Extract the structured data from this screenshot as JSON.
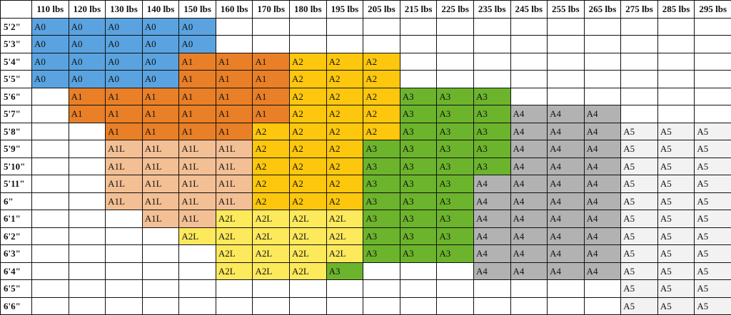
{
  "table": {
    "columns": [
      "110 lbs",
      "120 lbs",
      "130 lbs",
      "140 lbs",
      "150 lbs",
      "160 lbs",
      "170 lbs",
      "180 lbs",
      "195 lbs",
      "205 lbs",
      "215 lbs",
      "225 lbs",
      "235 lbs",
      "245 lbs",
      "255 lbs",
      "265 lbs",
      "275 lbs",
      "285 lbs",
      "295 lbs"
    ],
    "colors": {
      "A0": "#5aa3e0",
      "A1": "#e97f26",
      "A1L": "#f3bf94",
      "A2": "#fcc70c",
      "A2L": "#fde95c",
      "A3": "#6cb42c",
      "A4": "#b2b2b2",
      "A5": "#f2f2f2"
    },
    "rows": [
      {
        "label": "5'2\"",
        "cells": [
          "A0",
          "A0",
          "A0",
          "A0",
          "A0",
          null,
          null,
          null,
          null,
          null,
          null,
          null,
          null,
          null,
          null,
          null,
          null,
          null,
          null
        ]
      },
      {
        "label": "5'3\"",
        "cells": [
          "A0",
          "A0",
          "A0",
          "A0",
          "A0",
          null,
          null,
          null,
          null,
          null,
          null,
          null,
          null,
          null,
          null,
          null,
          null,
          null,
          null
        ]
      },
      {
        "label": "5'4\"",
        "cells": [
          "A0",
          "A0",
          "A0",
          "A0",
          "A1",
          "A1",
          "A1",
          "A2",
          "A2",
          "A2",
          null,
          null,
          null,
          null,
          null,
          null,
          null,
          null,
          null
        ]
      },
      {
        "label": "5'5\"",
        "cells": [
          "A0",
          "A0",
          "A0",
          "A0",
          "A1",
          "A1",
          "A1",
          "A2",
          "A2",
          "A2",
          null,
          null,
          null,
          null,
          null,
          null,
          null,
          null,
          null
        ]
      },
      {
        "label": "5'6\"",
        "cells": [
          null,
          "A1",
          "A1",
          "A1",
          "A1",
          "A1",
          "A1",
          "A2",
          "A2",
          "A2",
          "A3",
          "A3",
          "A3",
          null,
          null,
          null,
          null,
          null,
          null
        ]
      },
      {
        "label": "5'7\"",
        "cells": [
          null,
          "A1",
          "A1",
          "A1",
          "A1",
          "A1",
          "A1",
          "A2",
          "A2",
          "A2",
          "A3",
          "A3",
          "A3",
          "A4",
          "A4",
          "A4",
          null,
          null,
          null
        ]
      },
      {
        "label": "5'8\"",
        "cells": [
          null,
          null,
          "A1",
          "A1",
          "A1",
          "A1",
          "A2",
          "A2",
          "A2",
          "A2",
          "A3",
          "A3",
          "A3",
          "A4",
          "A4",
          "A4",
          "A5",
          "A5",
          "A5"
        ]
      },
      {
        "label": "5'9\"",
        "cells": [
          null,
          null,
          "A1L",
          "A1L",
          "A1L",
          "A1L",
          "A2",
          "A2",
          "A2",
          "A3",
          "A3",
          "A3",
          "A3",
          "A4",
          "A4",
          "A4",
          "A5",
          "A5",
          "A5"
        ]
      },
      {
        "label": "5'10\"",
        "cells": [
          null,
          null,
          "A1L",
          "A1L",
          "A1L",
          "A1L",
          "A2",
          "A2",
          "A2",
          "A3",
          "A3",
          "A3",
          "A3",
          "A4",
          "A4",
          "A4",
          "A5",
          "A5",
          "A5"
        ]
      },
      {
        "label": "5'11\"",
        "cells": [
          null,
          null,
          "A1L",
          "A1L",
          "A1L",
          "A1L",
          "A2",
          "A2",
          "A2",
          "A3",
          "A3",
          "A3",
          "A4",
          "A4",
          "A4",
          "A4",
          "A5",
          "A5",
          "A5"
        ]
      },
      {
        "label": "6\"",
        "cells": [
          null,
          null,
          "A1L",
          "A1L",
          "A1L",
          "A1L",
          "A2",
          "A2",
          "A2",
          "A3",
          "A3",
          "A3",
          "A4",
          "A4",
          "A4",
          "A4",
          "A5",
          "A5",
          "A5"
        ]
      },
      {
        "label": "6'1\"",
        "cells": [
          null,
          null,
          null,
          "A1L",
          "A1L",
          "A2L",
          "A2L",
          "A2L",
          "A2L",
          "A3",
          "A3",
          "A3",
          "A4",
          "A4",
          "A4",
          "A4",
          "A5",
          "A5",
          "A5"
        ]
      },
      {
        "label": "6'2\"",
        "cells": [
          null,
          null,
          null,
          null,
          "A2L",
          "A2L",
          "A2L",
          "A2L",
          "A2L",
          "A3",
          "A3",
          "A3",
          "A4",
          "A4",
          "A4",
          "A4",
          "A5",
          "A5",
          "A5"
        ]
      },
      {
        "label": "6'3\"",
        "cells": [
          null,
          null,
          null,
          null,
          null,
          "A2L",
          "A2L",
          "A2L",
          "A2L",
          "A3",
          "A3",
          "A3",
          "A4",
          "A4",
          "A4",
          "A4",
          "A5",
          "A5",
          "A5"
        ]
      },
      {
        "label": "6'4\"",
        "cells": [
          null,
          null,
          null,
          null,
          null,
          "A2L",
          "A2L",
          "A2L",
          "A3",
          null,
          null,
          null,
          "A4",
          "A4",
          "A4",
          "A4",
          "A5",
          "A5",
          "A5"
        ]
      },
      {
        "label": "6'5\"",
        "cells": [
          null,
          null,
          null,
          null,
          null,
          null,
          null,
          null,
          null,
          null,
          null,
          null,
          null,
          null,
          null,
          null,
          "A5",
          "A5",
          "A5"
        ]
      },
      {
        "label": "6'6\"",
        "cells": [
          null,
          null,
          null,
          null,
          null,
          null,
          null,
          null,
          null,
          null,
          null,
          null,
          null,
          null,
          null,
          null,
          "A5",
          "A5",
          "A5"
        ]
      }
    ]
  }
}
